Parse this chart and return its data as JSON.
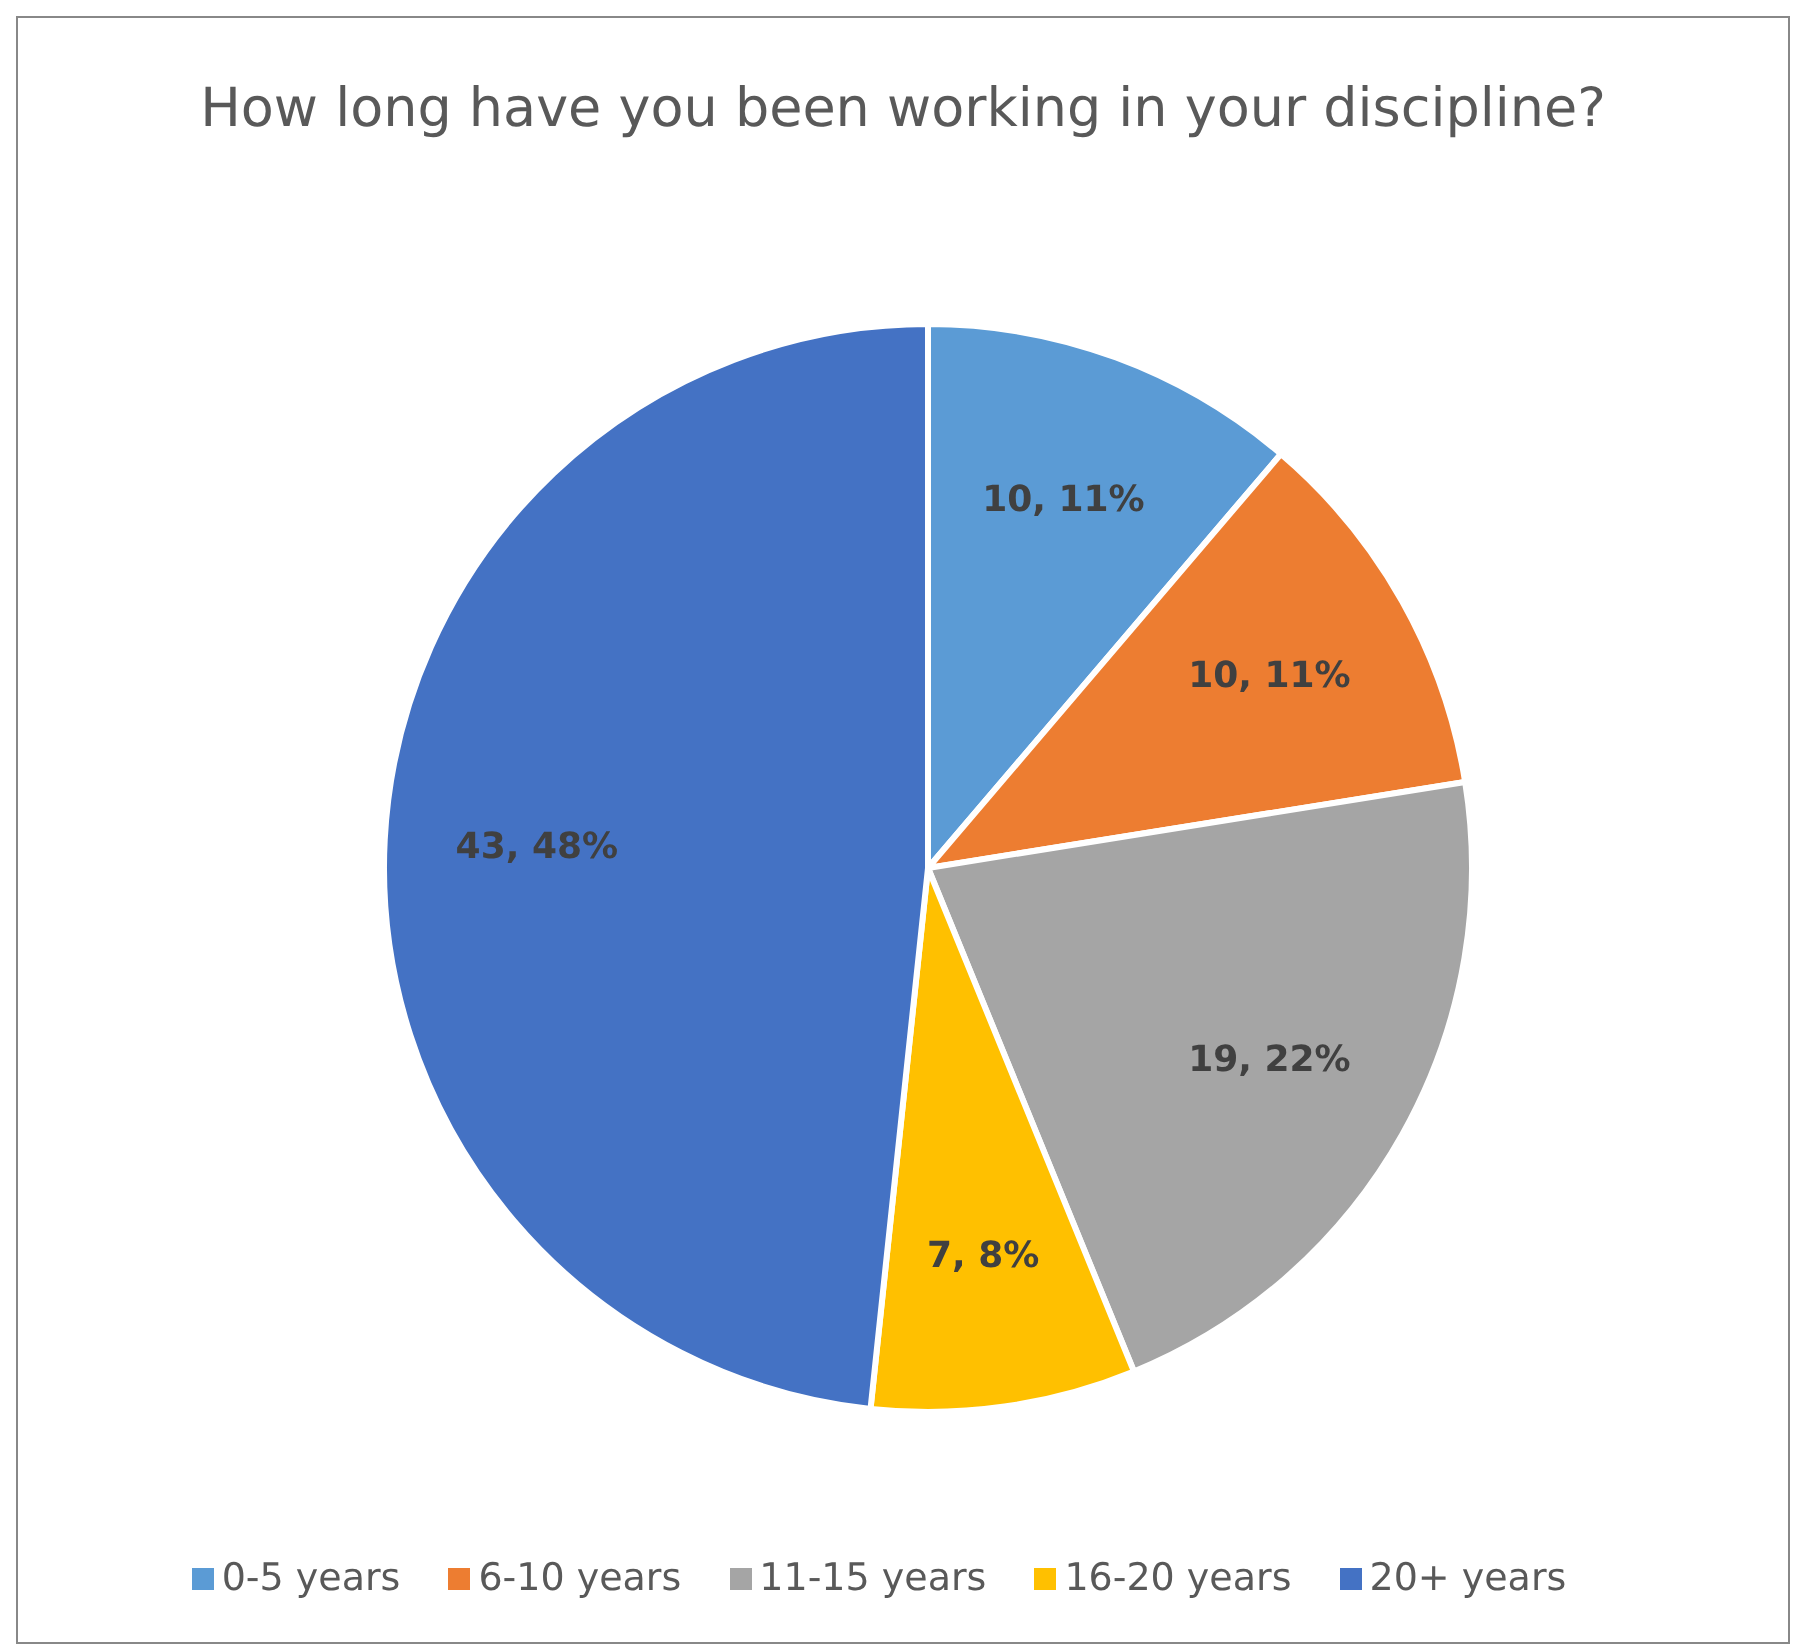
{
  "chart_data": {
    "type": "pie",
    "title": "How long have you been working in your discipline?",
    "categories": [
      "0-5 years",
      "6-10 years",
      "11-15 years",
      "16-20 years",
      "20+ years"
    ],
    "values": [
      10,
      10,
      19,
      7,
      43
    ],
    "value_labels": [
      "10, 11%",
      "10, 11%",
      "19, 22%",
      "7, 8%",
      "43, 48%"
    ],
    "colors": [
      "#5b9bd5",
      "#ed7d31",
      "#a5a5a5",
      "#ffc000",
      "#4472c4"
    ],
    "legend": "bottom"
  }
}
